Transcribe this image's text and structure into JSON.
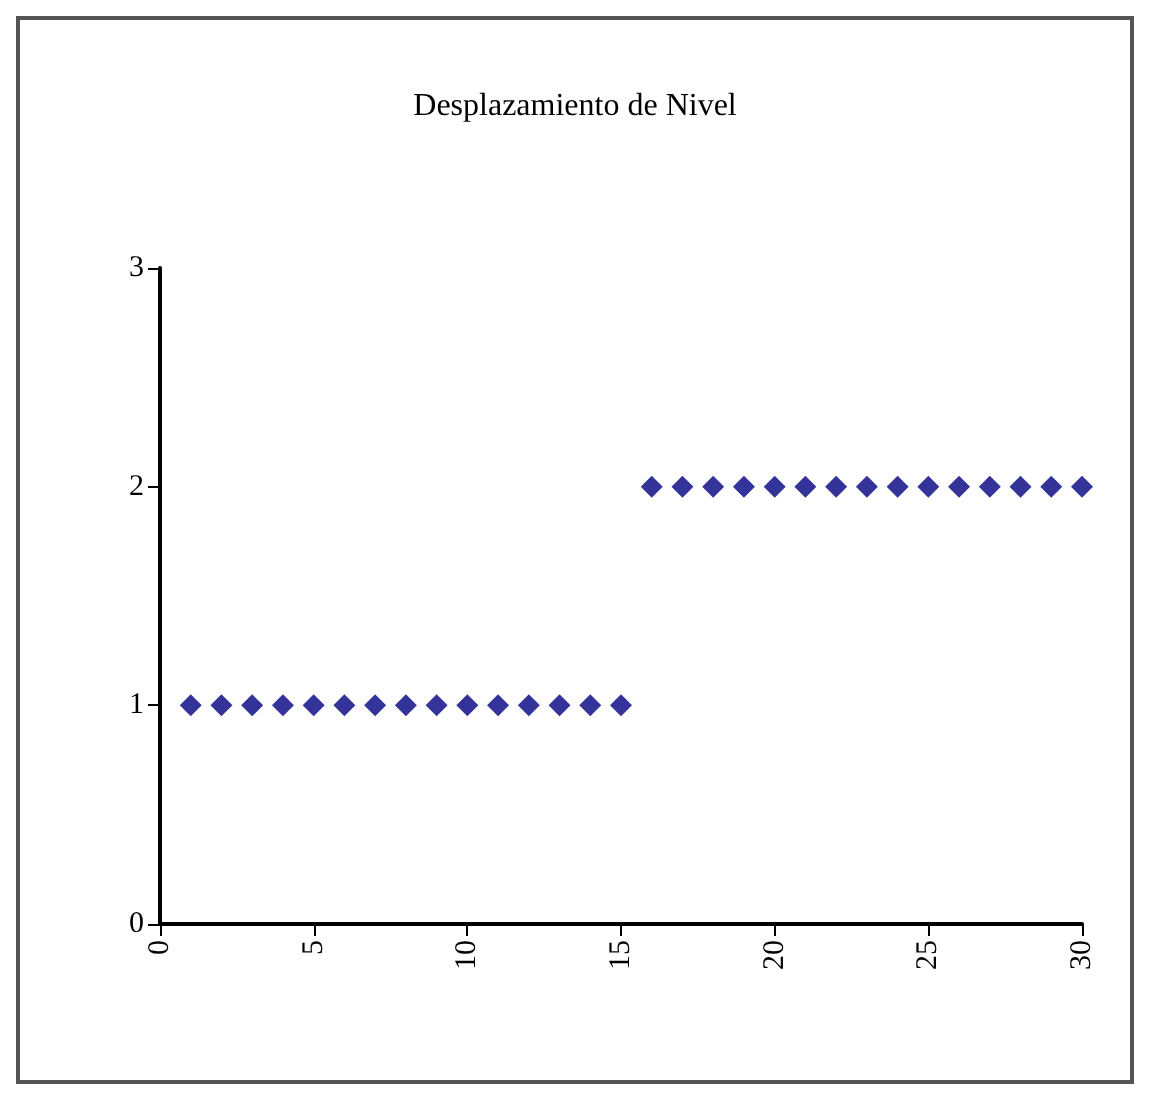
{
  "chart_data": {
    "type": "scatter",
    "title": "Desplazamiento de Nivel",
    "x": [
      1,
      2,
      3,
      4,
      5,
      6,
      7,
      8,
      9,
      10,
      11,
      12,
      13,
      14,
      15,
      16,
      17,
      18,
      19,
      20,
      21,
      22,
      23,
      24,
      25,
      26,
      27,
      28,
      29,
      30
    ],
    "series": [
      {
        "color": "#000080",
        "values": [
          1,
          1,
          1,
          1,
          1,
          1,
          1,
          1,
          1,
          1,
          1,
          1,
          1,
          1,
          1,
          2,
          2,
          2,
          2,
          2,
          2,
          2,
          2,
          2,
          2,
          2,
          2,
          2,
          2,
          2
        ]
      }
    ],
    "xlim": [
      0,
      30
    ],
    "xticks": [
      0,
      5,
      10,
      15,
      20,
      25,
      30
    ],
    "ylim": [
      0,
      3
    ],
    "yticks": [
      0,
      1,
      2,
      3
    ],
    "marker": "diamond",
    "grid": false
  }
}
